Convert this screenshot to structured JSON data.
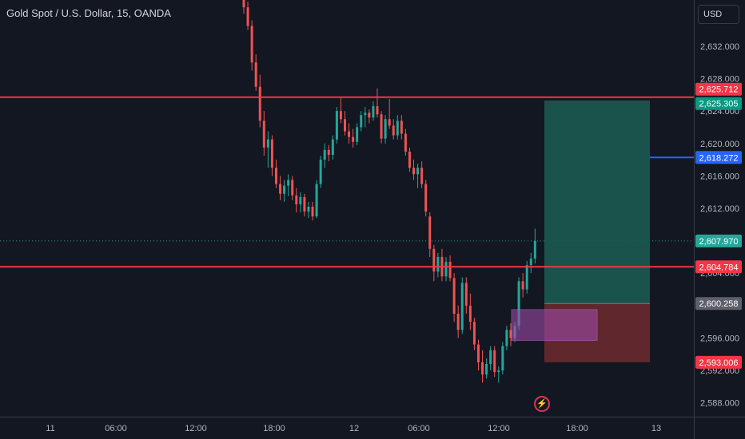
{
  "header": {
    "title": "Gold Spot / U.S. Dollar, 15, OANDA",
    "currency": "USD"
  },
  "icons": {
    "alert": "lightning-bolt-icon"
  },
  "colors": {
    "background": "#131722",
    "up": "#26a69a",
    "down": "#ef5350",
    "level_line": "#f23645",
    "price_line": "#2962ff",
    "target_zone": "#1b5e54",
    "stop_zone": "#6e2a2e",
    "ob_zone": "#9c4aa8"
  },
  "chart_data": {
    "type": "candlestick",
    "symbol": "Gold Spot / U.S. Dollar",
    "interval": "15",
    "exchange": "OANDA",
    "ylim": [
      2586.3,
      2637.7
    ],
    "x_ticks": [
      "11",
      "06:00",
      "12:00",
      "18:00",
      "12",
      "06:00",
      "12:00",
      "18:00",
      "13"
    ],
    "y_ticks": [
      2588,
      2592,
      2596,
      2600,
      2604,
      2608,
      2612,
      2616,
      2620,
      2624,
      2628,
      2632
    ],
    "price_labels": [
      {
        "value": "2,625.712",
        "kind": "level"
      },
      {
        "value": "2,625.305",
        "kind": "target"
      },
      {
        "value": "2,618.272",
        "kind": "line"
      },
      {
        "value": "2,607.970",
        "kind": "last"
      },
      {
        "value": "2,604.784",
        "kind": "level"
      },
      {
        "value": "2,600.258",
        "kind": "entry"
      },
      {
        "value": "2,593.006",
        "kind": "stop"
      }
    ],
    "horizontal_levels": [
      2625.712,
      2604.784
    ],
    "price_line": 2618.272,
    "last_price": 2607.97,
    "position": {
      "side": "long",
      "entry": 2600.258,
      "target": 2625.305,
      "stop": 2593.006
    },
    "zone": {
      "top": 2599.5,
      "bottom": 2595.7
    },
    "candles_ohlc": [
      [
        2640.0,
        2641.5,
        2636.0,
        2636.8
      ],
      [
        2636.8,
        2637.5,
        2634.0,
        2634.5
      ],
      [
        2634.5,
        2635.2,
        2629.0,
        2630.0
      ],
      [
        2630.0,
        2631.0,
        2626.5,
        2627.0
      ],
      [
        2627.0,
        2628.5,
        2622.0,
        2622.8
      ],
      [
        2622.8,
        2624.0,
        2618.5,
        2619.5
      ],
      [
        2619.5,
        2621.5,
        2617.0,
        2620.5
      ],
      [
        2620.5,
        2621.0,
        2616.0,
        2617.0
      ],
      [
        2617.0,
        2618.0,
        2614.5,
        2615.0
      ],
      [
        2615.0,
        2616.0,
        2613.0,
        2613.8
      ],
      [
        2613.8,
        2615.5,
        2612.8,
        2614.8
      ],
      [
        2614.8,
        2616.2,
        2613.5,
        2615.5
      ],
      [
        2615.5,
        2616.0,
        2613.0,
        2613.6
      ],
      [
        2613.6,
        2614.5,
        2611.5,
        2612.5
      ],
      [
        2612.5,
        2614.0,
        2611.5,
        2613.4
      ],
      [
        2613.4,
        2613.8,
        2611.0,
        2611.6
      ],
      [
        2611.6,
        2612.8,
        2610.8,
        2612.2
      ],
      [
        2612.2,
        2612.8,
        2610.5,
        2611.0
      ],
      [
        2611.0,
        2615.5,
        2610.8,
        2615.0
      ],
      [
        2615.0,
        2618.5,
        2614.5,
        2618.0
      ],
      [
        2618.0,
        2620.0,
        2617.0,
        2619.2
      ],
      [
        2619.2,
        2619.8,
        2617.8,
        2618.6
      ],
      [
        2618.6,
        2621.0,
        2618.0,
        2620.5
      ],
      [
        2620.5,
        2624.5,
        2620.0,
        2624.0
      ],
      [
        2624.0,
        2625.8,
        2622.5,
        2623.0
      ],
      [
        2623.0,
        2624.0,
        2621.0,
        2621.5
      ],
      [
        2621.5,
        2622.5,
        2620.0,
        2620.8
      ],
      [
        2620.8,
        2621.8,
        2619.5,
        2620.2
      ],
      [
        2620.2,
        2622.5,
        2619.8,
        2622.0
      ],
      [
        2622.0,
        2624.0,
        2621.5,
        2623.5
      ],
      [
        2623.5,
        2624.5,
        2622.0,
        2623.8
      ],
      [
        2623.8,
        2624.2,
        2622.5,
        2623.2
      ],
      [
        2623.2,
        2625.2,
        2622.8,
        2624.6
      ],
      [
        2624.6,
        2626.8,
        2623.2,
        2623.6
      ],
      [
        2623.6,
        2624.0,
        2620.0,
        2620.6
      ],
      [
        2620.6,
        2623.5,
        2620.0,
        2623.0
      ],
      [
        2623.0,
        2625.5,
        2621.8,
        2622.2
      ],
      [
        2622.2,
        2623.0,
        2620.5,
        2621.0
      ],
      [
        2621.0,
        2623.5,
        2620.5,
        2622.8
      ],
      [
        2622.8,
        2623.5,
        2620.5,
        2621.2
      ],
      [
        2621.2,
        2621.8,
        2618.5,
        2619.0
      ],
      [
        2619.0,
        2619.5,
        2616.5,
        2617.0
      ],
      [
        2617.0,
        2618.0,
        2615.5,
        2616.2
      ],
      [
        2616.2,
        2617.5,
        2614.5,
        2617.0
      ],
      [
        2617.0,
        2617.8,
        2614.5,
        2615.0
      ],
      [
        2615.0,
        2615.5,
        2611.0,
        2611.6
      ],
      [
        2611.0,
        2611.5,
        2606.0,
        2607.0
      ],
      [
        2607.0,
        2607.5,
        2603.0,
        2604.2
      ],
      [
        2604.2,
        2606.5,
        2603.5,
        2606.0
      ],
      [
        2606.0,
        2607.0,
        2603.0,
        2603.6
      ],
      [
        2603.6,
        2606.0,
        2603.0,
        2605.4
      ],
      [
        2605.4,
        2606.2,
        2603.0,
        2603.4
      ],
      [
        2603.4,
        2604.0,
        2598.0,
        2599.0
      ],
      [
        2599.0,
        2600.0,
        2596.0,
        2597.0
      ],
      [
        2597.0,
        2603.5,
        2596.5,
        2602.8
      ],
      [
        2602.8,
        2603.5,
        2599.0,
        2600.0
      ],
      [
        2600.0,
        2601.5,
        2597.0,
        2598.0
      ],
      [
        2598.0,
        2598.5,
        2594.5,
        2595.2
      ],
      [
        2595.2,
        2595.8,
        2592.0,
        2593.0
      ],
      [
        2593.0,
        2594.5,
        2590.5,
        2591.5
      ],
      [
        2591.5,
        2593.5,
        2591.0,
        2592.8
      ],
      [
        2592.8,
        2595.0,
        2592.0,
        2594.5
      ],
      [
        2594.5,
        2595.0,
        2591.2,
        2591.8
      ],
      [
        2591.8,
        2592.5,
        2590.5,
        2592.0
      ],
      [
        2592.0,
        2595.5,
        2591.5,
        2595.0
      ],
      [
        2595.0,
        2597.5,
        2594.5,
        2597.0
      ],
      [
        2597.0,
        2597.8,
        2595.0,
        2596.0
      ],
      [
        2596.0,
        2598.0,
        2595.5,
        2597.5
      ],
      [
        2597.5,
        2603.5,
        2597.0,
        2603.0
      ],
      [
        2603.0,
        2604.0,
        2601.0,
        2602.0
      ],
      [
        2602.0,
        2605.5,
        2601.5,
        2605.0
      ],
      [
        2605.0,
        2606.5,
        2604.0,
        2605.8
      ],
      [
        2605.8,
        2609.5,
        2605.2,
        2607.97
      ]
    ]
  }
}
